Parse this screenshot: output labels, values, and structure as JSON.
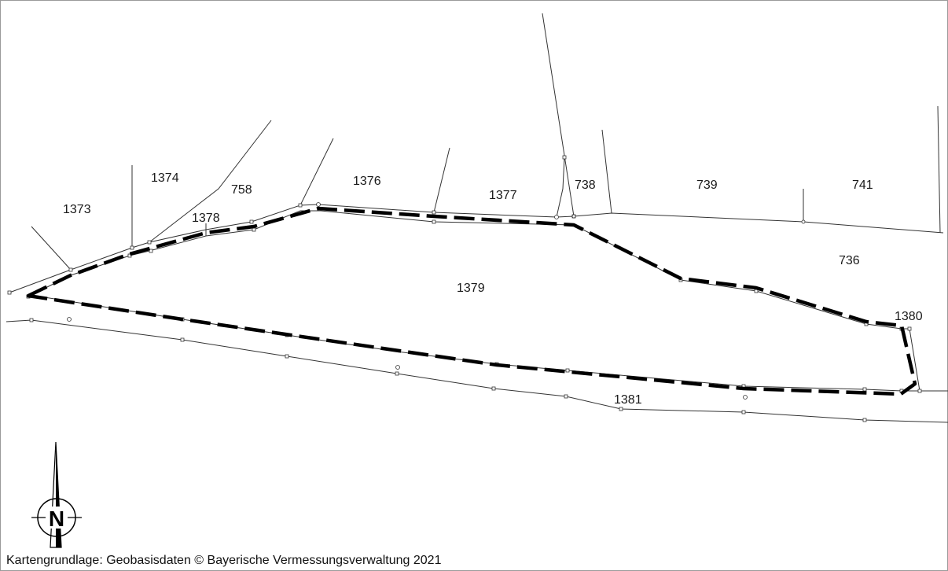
{
  "map": {
    "parcels": [
      {
        "id": "1373",
        "label": "1373"
      },
      {
        "id": "1374",
        "label": "1374"
      },
      {
        "id": "758",
        "label": "758"
      },
      {
        "id": "1378",
        "label": "1378"
      },
      {
        "id": "1376",
        "label": "1376"
      },
      {
        "id": "1377",
        "label": "1377"
      },
      {
        "id": "738",
        "label": "738"
      },
      {
        "id": "739",
        "label": "739"
      },
      {
        "id": "741",
        "label": "741"
      },
      {
        "id": "736",
        "label": "736"
      },
      {
        "id": "1379",
        "label": "1379"
      },
      {
        "id": "1380",
        "label": "1380"
      },
      {
        "id": "1381",
        "label": "1381"
      }
    ],
    "highlighted_parcel": "1379",
    "north_arrow_label": "N",
    "credit": "Kartengrundlage: Geobasisdaten © Bayerische Vermessungsverwaltung 2021"
  },
  "colors": {
    "background": "#ffffff",
    "lines": "#333333",
    "boundary": "#000000"
  }
}
